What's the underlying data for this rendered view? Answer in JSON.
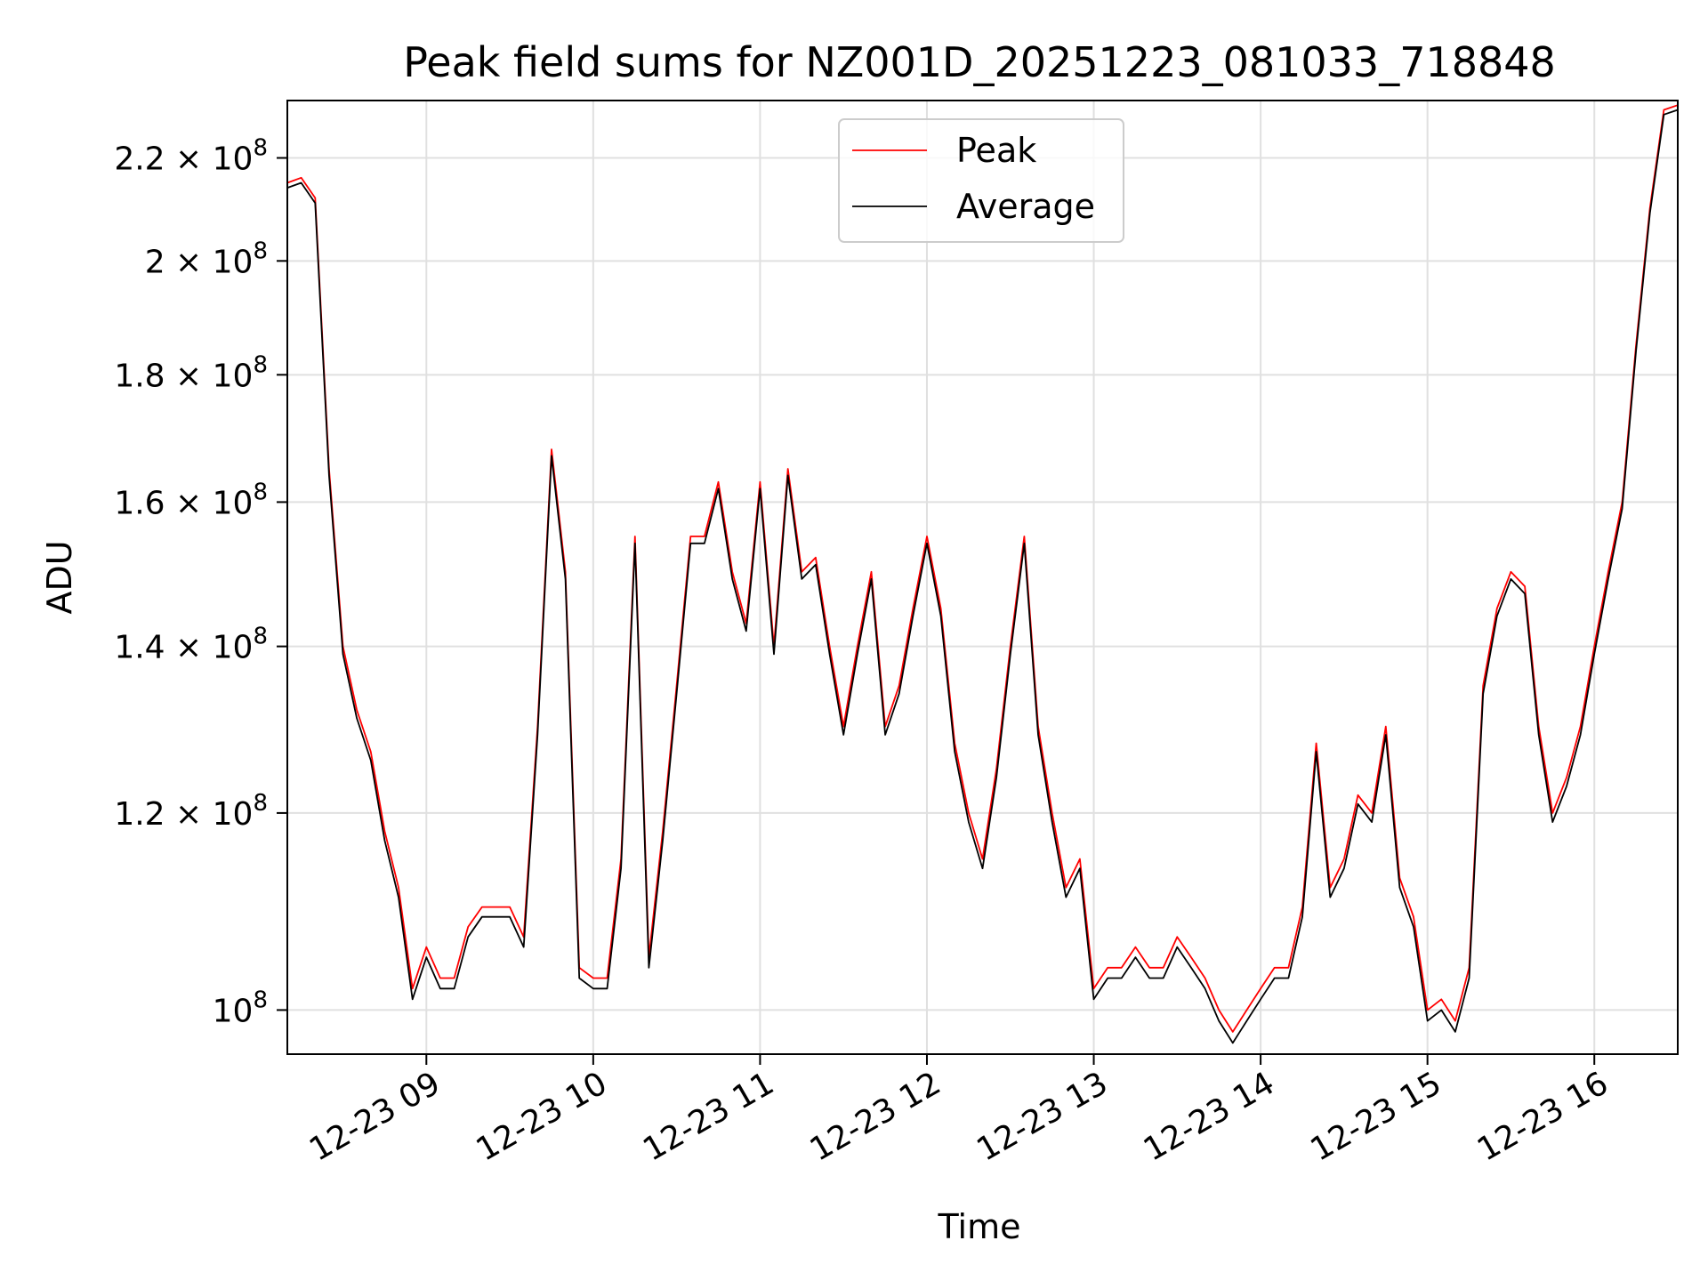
{
  "chart_data": {
    "type": "line",
    "title": "Peak field sums for NZ001D_20251223_081033_718848",
    "xlabel": "Time",
    "ylabel": "ADU",
    "y_scale": "log",
    "ylim": [
      96000000,
      232000000
    ],
    "xlim": [
      "2025-12-23 08:10",
      "2025-12-23 16:30"
    ],
    "x_ticks": [
      {
        "value": "2025-12-23 09:00",
        "label": "12-23 09"
      },
      {
        "value": "2025-12-23 10:00",
        "label": "12-23 10"
      },
      {
        "value": "2025-12-23 11:00",
        "label": "12-23 11"
      },
      {
        "value": "2025-12-23 12:00",
        "label": "12-23 12"
      },
      {
        "value": "2025-12-23 13:00",
        "label": "12-23 13"
      },
      {
        "value": "2025-12-23 14:00",
        "label": "12-23 14"
      },
      {
        "value": "2025-12-23 15:00",
        "label": "12-23 15"
      },
      {
        "value": "2025-12-23 16:00",
        "label": "12-23 16"
      }
    ],
    "y_ticks": [
      {
        "value": 100000000,
        "label": "10",
        "exp": "8",
        "mant": ""
      },
      {
        "value": 120000000,
        "label": "1.2 × 10",
        "exp": "8",
        "mant": "1.2"
      },
      {
        "value": 140000000,
        "label": "1.4 × 10",
        "exp": "8",
        "mant": "1.4"
      },
      {
        "value": 160000000,
        "label": "1.6 × 10",
        "exp": "8",
        "mant": "1.6"
      },
      {
        "value": 180000000,
        "label": "1.8 × 10",
        "exp": "8",
        "mant": "1.8"
      },
      {
        "value": 200000000,
        "label": "2 × 10",
        "exp": "8",
        "mant": "2"
      },
      {
        "value": 220000000,
        "label": "2.2 × 10",
        "exp": "8",
        "mant": "2.2"
      }
    ],
    "grid": true,
    "legend_position": "upper-center",
    "series": [
      {
        "name": "Peak",
        "color": "#ff0000"
      },
      {
        "name": "Average",
        "color": "#000000"
      }
    ],
    "x": [
      "2025-12-23 08:10",
      "2025-12-23 08:15",
      "2025-12-23 08:20",
      "2025-12-23 08:25",
      "2025-12-23 08:30",
      "2025-12-23 08:35",
      "2025-12-23 08:40",
      "2025-12-23 08:45",
      "2025-12-23 08:50",
      "2025-12-23 08:55",
      "2025-12-23 09:00",
      "2025-12-23 09:05",
      "2025-12-23 09:10",
      "2025-12-23 09:15",
      "2025-12-23 09:20",
      "2025-12-23 09:25",
      "2025-12-23 09:30",
      "2025-12-23 09:35",
      "2025-12-23 09:40",
      "2025-12-23 09:45",
      "2025-12-23 09:50",
      "2025-12-23 09:55",
      "2025-12-23 10:00",
      "2025-12-23 10:05",
      "2025-12-23 10:10",
      "2025-12-23 10:15",
      "2025-12-23 10:20",
      "2025-12-23 10:25",
      "2025-12-23 10:30",
      "2025-12-23 10:35",
      "2025-12-23 10:40",
      "2025-12-23 10:45",
      "2025-12-23 10:50",
      "2025-12-23 10:55",
      "2025-12-23 11:00",
      "2025-12-23 11:05",
      "2025-12-23 11:10",
      "2025-12-23 11:15",
      "2025-12-23 11:20",
      "2025-12-23 11:25",
      "2025-12-23 11:30",
      "2025-12-23 11:35",
      "2025-12-23 11:40",
      "2025-12-23 11:45",
      "2025-12-23 11:50",
      "2025-12-23 11:55",
      "2025-12-23 12:00",
      "2025-12-23 12:05",
      "2025-12-23 12:10",
      "2025-12-23 12:15",
      "2025-12-23 12:20",
      "2025-12-23 12:25",
      "2025-12-23 12:30",
      "2025-12-23 12:35",
      "2025-12-23 12:40",
      "2025-12-23 12:45",
      "2025-12-23 12:50",
      "2025-12-23 12:55",
      "2025-12-23 13:00",
      "2025-12-23 13:05",
      "2025-12-23 13:10",
      "2025-12-23 13:15",
      "2025-12-23 13:20",
      "2025-12-23 13:25",
      "2025-12-23 13:30",
      "2025-12-23 13:35",
      "2025-12-23 13:40",
      "2025-12-23 13:45",
      "2025-12-23 13:50",
      "2025-12-23 13:55",
      "2025-12-23 14:00",
      "2025-12-23 14:05",
      "2025-12-23 14:10",
      "2025-12-23 14:15",
      "2025-12-23 14:20",
      "2025-12-23 14:25",
      "2025-12-23 14:30",
      "2025-12-23 14:35",
      "2025-12-23 14:40",
      "2025-12-23 14:45",
      "2025-12-23 14:50",
      "2025-12-23 14:55",
      "2025-12-23 15:00",
      "2025-12-23 15:05",
      "2025-12-23 15:10",
      "2025-12-23 15:15",
      "2025-12-23 15:20",
      "2025-12-23 15:25",
      "2025-12-23 15:30",
      "2025-12-23 15:35",
      "2025-12-23 15:40",
      "2025-12-23 15:45",
      "2025-12-23 15:50",
      "2025-12-23 15:55",
      "2025-12-23 16:00",
      "2025-12-23 16:05",
      "2025-12-23 16:10",
      "2025-12-23 16:15",
      "2025-12-23 16:20",
      "2025-12-23 16:25",
      "2025-12-23 16:30"
    ],
    "peak": [
      215000000,
      216000000,
      212000000,
      165000000,
      140000000,
      132000000,
      127000000,
      118000000,
      112000000,
      102000000,
      106000000,
      103000000,
      103000000,
      108000000,
      110000000,
      110000000,
      110000000,
      107000000,
      130000000,
      168000000,
      150000000,
      104000000,
      103000000,
      103000000,
      115000000,
      155000000,
      105000000,
      118000000,
      135000000,
      155000000,
      155000000,
      163000000,
      150000000,
      143000000,
      163000000,
      140000000,
      165000000,
      150000000,
      152000000,
      140000000,
      130000000,
      140000000,
      150000000,
      130000000,
      135000000,
      145000000,
      155000000,
      145000000,
      128000000,
      120000000,
      115000000,
      125000000,
      140000000,
      155000000,
      130000000,
      120000000,
      112000000,
      115000000,
      102000000,
      104000000,
      104000000,
      106000000,
      104000000,
      104000000,
      107000000,
      105000000,
      103000000,
      100000000,
      98000000,
      100000000,
      102000000,
      104000000,
      104000000,
      110000000,
      128000000,
      112000000,
      115000000,
      122000000,
      120000000,
      130000000,
      113000000,
      109000000,
      100000000,
      101000000,
      99000000,
      104000000,
      135000000,
      145000000,
      150000000,
      148000000,
      130000000,
      120000000,
      124000000,
      130000000,
      140000000,
      150000000,
      160000000,
      185000000,
      210000000,
      230000000,
      231000000
    ],
    "average": [
      214000000,
      215000000,
      211000000,
      164000000,
      139000000,
      131000000,
      126000000,
      117000000,
      111000000,
      101000000,
      105000000,
      102000000,
      102000000,
      107000000,
      109000000,
      109000000,
      109000000,
      106000000,
      129000000,
      167000000,
      149000000,
      103000000,
      102000000,
      102000000,
      114000000,
      154000000,
      104000000,
      117000000,
      134000000,
      154000000,
      154000000,
      162000000,
      149000000,
      142000000,
      162000000,
      139000000,
      164000000,
      149000000,
      151000000,
      139000000,
      129000000,
      139000000,
      149000000,
      129000000,
      134000000,
      144000000,
      154000000,
      144000000,
      127000000,
      119000000,
      114000000,
      124000000,
      139000000,
      154000000,
      129000000,
      119000000,
      111000000,
      114000000,
      101000000,
      103000000,
      103000000,
      105000000,
      103000000,
      103000000,
      106000000,
      104000000,
      102000000,
      99000000,
      97000000,
      99000000,
      101000000,
      103000000,
      103000000,
      109000000,
      127000000,
      111000000,
      114000000,
      121000000,
      119000000,
      129000000,
      112000000,
      108000000,
      99000000,
      100000000,
      98000000,
      103000000,
      134000000,
      144000000,
      149000000,
      147000000,
      129000000,
      119000000,
      123000000,
      129000000,
      139000000,
      149000000,
      159000000,
      184000000,
      209000000,
      229000000,
      230000000
    ]
  }
}
